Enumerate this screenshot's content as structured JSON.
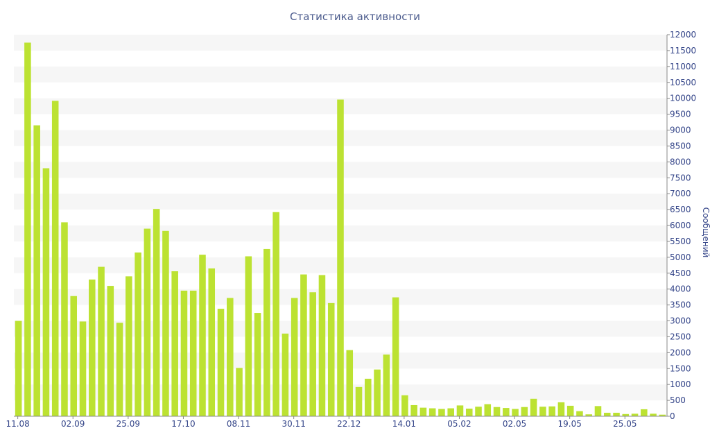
{
  "chart_data": {
    "type": "bar",
    "title": "Статистика активности",
    "ylabel": "Сообщений",
    "xlabel": "",
    "ylim": [
      0,
      12000
    ],
    "y_ticks": [
      0,
      500,
      1000,
      1500,
      2000,
      2500,
      3000,
      3500,
      4000,
      4500,
      5000,
      5500,
      6000,
      6500,
      7000,
      7500,
      8000,
      8500,
      9000,
      9500,
      10000,
      10500,
      11000,
      11500,
      12000
    ],
    "y_axis_side": "right",
    "x_tick_labels": [
      {
        "index": 0,
        "label": "11.08"
      },
      {
        "index": 6,
        "label": "02.09"
      },
      {
        "index": 12,
        "label": "25.09"
      },
      {
        "index": 18,
        "label": "17.10"
      },
      {
        "index": 24,
        "label": "08.11"
      },
      {
        "index": 30,
        "label": "30.11"
      },
      {
        "index": 36,
        "label": "22.12"
      },
      {
        "index": 42,
        "label": "14.01"
      },
      {
        "index": 48,
        "label": "05.02"
      },
      {
        "index": 54,
        "label": "02.05"
      },
      {
        "index": 60,
        "label": "19.05"
      },
      {
        "index": 66,
        "label": "25.05"
      }
    ],
    "values": [
      3000,
      11750,
      9150,
      7800,
      9920,
      6100,
      3780,
      2980,
      4300,
      4700,
      4100,
      2940,
      4400,
      5150,
      5900,
      6520,
      5830,
      4560,
      3950,
      3950,
      5080,
      4650,
      3380,
      3720,
      1520,
      5030,
      3250,
      5260,
      6420,
      2600,
      3720,
      4460,
      3900,
      4440,
      3560,
      9960,
      2080,
      920,
      1180,
      1470,
      1940,
      3740,
      660,
      350,
      270,
      250,
      230,
      250,
      340,
      240,
      300,
      380,
      290,
      260,
      230,
      290,
      550,
      300,
      310,
      440,
      330,
      160,
      60,
      320,
      110,
      110,
      70,
      80,
      220,
      80,
      50
    ],
    "bar_color": "#bce232",
    "grid": "horizontal alternating bands",
    "legend": "none"
  }
}
